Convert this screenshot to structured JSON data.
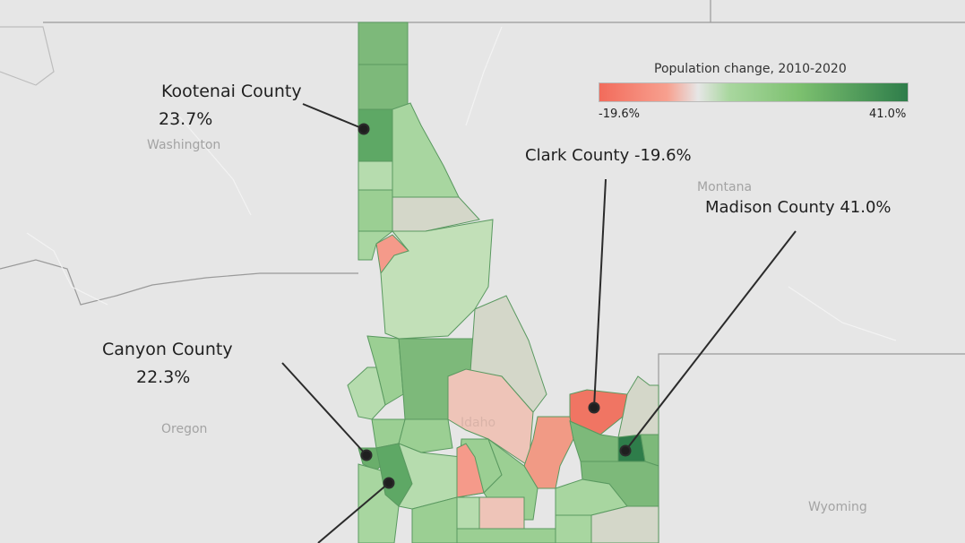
{
  "legend": {
    "title": "Population change, 2010-2020",
    "min_label": "-19.6%",
    "max_label": "41.0%",
    "colors": {
      "low": "#f26b5b",
      "mid": "#e6e6e6",
      "high": "#2e7d4a"
    }
  },
  "places": {
    "washington": "Washington",
    "montana": "Montana",
    "oregon": "Oregon",
    "wyoming": "Wyoming",
    "idaho": "Idaho"
  },
  "annotations": {
    "kootenai": {
      "name": "Kootenai County",
      "value": "23.7%"
    },
    "clark": {
      "name": "Clark County -19.6%"
    },
    "madison": {
      "name": "Madison County 41.0%"
    },
    "canyon": {
      "name": "Canyon County",
      "value": "22.3%"
    }
  },
  "colors": {
    "background": "#e6e6e6",
    "county_border": "#5a9960",
    "leader_line": "#2b2b2b"
  }
}
